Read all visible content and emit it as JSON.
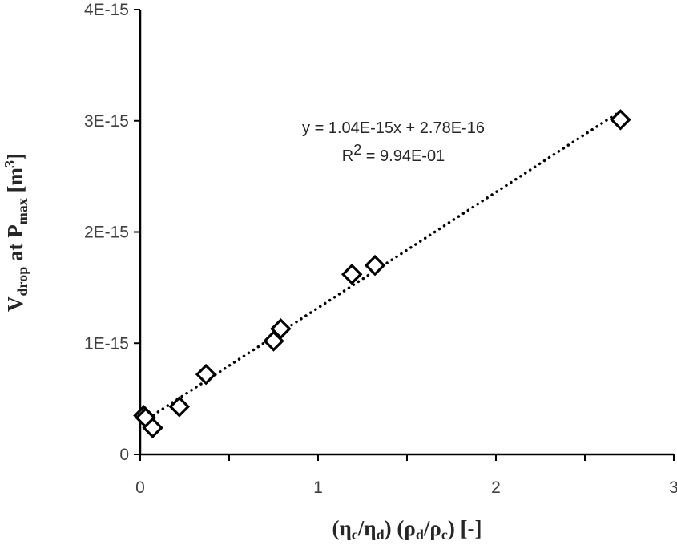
{
  "chart_data": {
    "type": "scatter",
    "x_ticks": [
      "0",
      "1",
      "2",
      "3"
    ],
    "y_ticks": [
      "0",
      "1E-15",
      "2E-15",
      "3E-15",
      "4E-15"
    ],
    "xlim": [
      0,
      3
    ],
    "ylim": [
      0,
      4e-15
    ],
    "xlabel": "(ηc/ηd) (ρd/ρc) [-]",
    "ylabel": "Vdrop at Pmax [m3]",
    "xlabel_parts": {
      "open": "(η",
      "sub1": "c",
      "slash1": "/η",
      "sub2": "d",
      "mid": ") (ρ",
      "sub3": "d",
      "slash2": "/ρ",
      "sub4": "c",
      "close": ") [-]"
    },
    "ylabel_parts": {
      "v": "V",
      "v_sub": "drop",
      "at": " at P",
      "p_sub": "max",
      "unit": " [m",
      "unit_sup": "3",
      "unit_close": "]"
    },
    "series": [
      {
        "marker": "diamond-open",
        "points": [
          {
            "x": 0.02,
            "y": 3.5e-16
          },
          {
            "x": 0.03,
            "y": 3.3e-16
          },
          {
            "x": 0.07,
            "y": 2.4e-16
          },
          {
            "x": 0.22,
            "y": 4.3e-16
          },
          {
            "x": 0.37,
            "y": 7.2e-16
          },
          {
            "x": 0.75,
            "y": 1.02e-15
          },
          {
            "x": 0.79,
            "y": 1.13e-15
          },
          {
            "x": 1.19,
            "y": 1.62e-15
          },
          {
            "x": 1.32,
            "y": 1.7e-15
          },
          {
            "x": 2.7,
            "y": 3.01e-15
          }
        ]
      }
    ],
    "trendline": {
      "type": "linear",
      "style": "dotted",
      "slope": 1.04e-15,
      "intercept": 2.78e-16,
      "x_range": [
        0.02,
        2.7
      ],
      "equation": "y = 1.04E-15x + 2.78E-16",
      "r2_prefix": "R",
      "r2_sup": "2",
      "r2_value": " = 9.94E-01"
    },
    "grid": false,
    "legend": "none",
    "colors": {
      "marker": "#000000",
      "axis": "#000000",
      "text": "#404040"
    }
  }
}
